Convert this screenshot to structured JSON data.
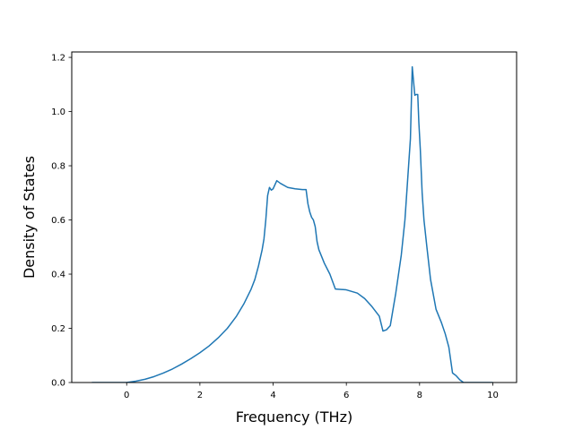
{
  "chart_data": {
    "type": "line",
    "title": "",
    "xlabel": "Frequency (THz)",
    "ylabel": "Density of States",
    "xlim": [
      -1.5,
      10.65
    ],
    "ylim": [
      0.0,
      1.22
    ],
    "grid": false,
    "xticks": [
      0,
      2,
      4,
      6,
      8,
      10
    ],
    "yticks": [
      0.0,
      0.2,
      0.4,
      0.6,
      0.8,
      1.0,
      1.2
    ],
    "xtick_labels": [
      "0",
      "2",
      "4",
      "6",
      "8",
      "10"
    ],
    "ytick_labels": [
      "0.0",
      "0.2",
      "0.4",
      "0.6",
      "0.8",
      "1.0",
      "1.2"
    ],
    "colors": {
      "line": "#1f77b4"
    },
    "series": [
      {
        "x": [
          -0.95,
          -0.5,
          0.0,
          0.25,
          0.5,
          0.75,
          1.0,
          1.25,
          1.5,
          1.75,
          2.0,
          2.25,
          2.5,
          2.75,
          3.0,
          3.2,
          3.4,
          3.5,
          3.6,
          3.7,
          3.75,
          3.8,
          3.85,
          3.9,
          3.95,
          4.0,
          4.05,
          4.1,
          4.2,
          4.4,
          4.6,
          4.8,
          4.9,
          4.95,
          5.0,
          5.05,
          5.1,
          5.15,
          5.2,
          5.25,
          5.4,
          5.55,
          5.7,
          6.0,
          6.3,
          6.5,
          6.7,
          6.9,
          7.0,
          7.1,
          7.2,
          7.25,
          7.35,
          7.5,
          7.6,
          7.7,
          7.75,
          7.8,
          7.83,
          7.87,
          7.9,
          7.95,
          7.98,
          8.02,
          8.07,
          8.12,
          8.2,
          8.3,
          8.45,
          8.6,
          8.7,
          8.8,
          8.9,
          9.0,
          9.1,
          9.2,
          9.5,
          10.0
        ],
        "y": [
          0.0,
          0.0,
          0.0,
          0.005,
          0.012,
          0.022,
          0.035,
          0.05,
          0.068,
          0.088,
          0.11,
          0.135,
          0.165,
          0.2,
          0.245,
          0.29,
          0.345,
          0.38,
          0.43,
          0.49,
          0.53,
          0.6,
          0.69,
          0.72,
          0.71,
          0.715,
          0.73,
          0.745,
          0.735,
          0.72,
          0.715,
          0.712,
          0.712,
          0.66,
          0.63,
          0.61,
          0.6,
          0.575,
          0.52,
          0.49,
          0.44,
          0.4,
          0.345,
          0.342,
          0.33,
          0.31,
          0.28,
          0.245,
          0.19,
          0.195,
          0.21,
          0.25,
          0.33,
          0.47,
          0.6,
          0.8,
          0.9,
          1.165,
          1.12,
          1.06,
          1.063,
          1.063,
          0.96,
          0.86,
          0.7,
          0.6,
          0.5,
          0.38,
          0.27,
          0.22,
          0.18,
          0.13,
          0.035,
          0.025,
          0.01,
          0.0,
          0.0,
          0.0
        ]
      }
    ]
  }
}
